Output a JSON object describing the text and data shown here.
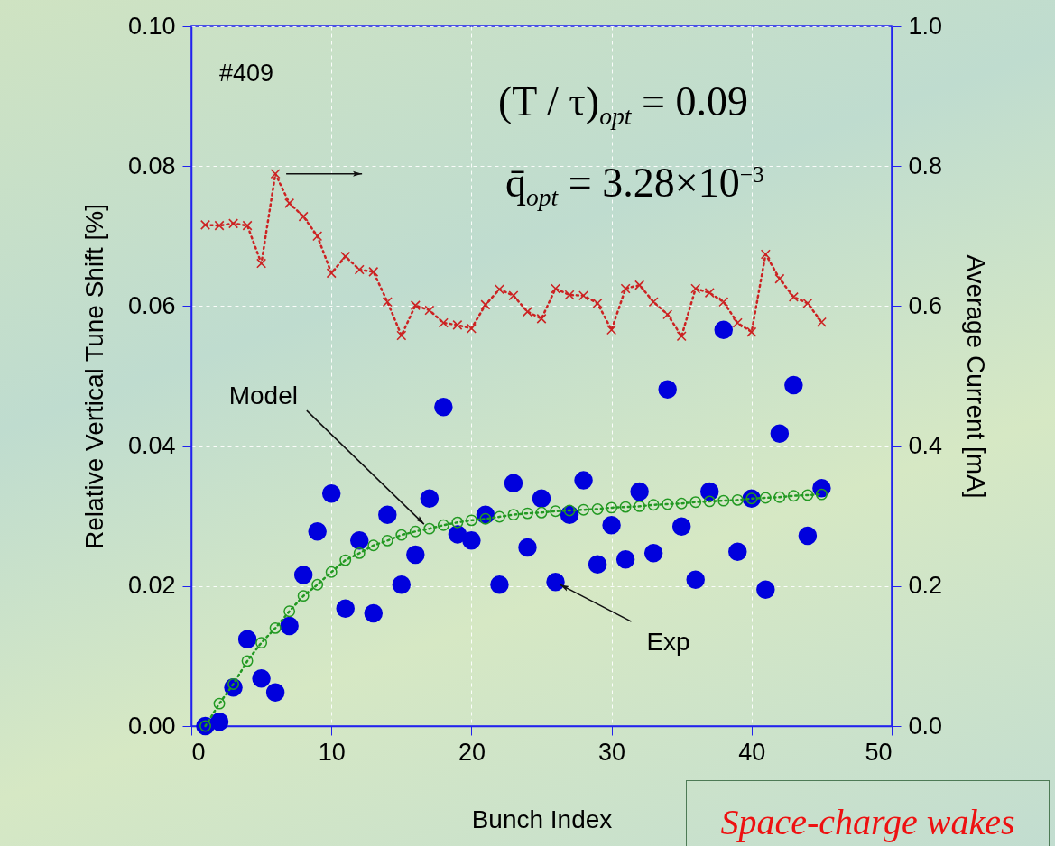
{
  "chart_data": {
    "type": "scatter",
    "xlabel": "Bunch Index",
    "ylabel": "Relative Vertical Tune Shift [%]",
    "y2label": "Average Current [mA]",
    "x": [
      1,
      2,
      3,
      4,
      5,
      6,
      7,
      8,
      9,
      10,
      11,
      12,
      13,
      14,
      15,
      16,
      17,
      18,
      19,
      20,
      21,
      22,
      23,
      24,
      25,
      26,
      27,
      28,
      29,
      30,
      31,
      32,
      33,
      34,
      35,
      36,
      37,
      38,
      39,
      40,
      41,
      42,
      43,
      44,
      45
    ],
    "series": [
      {
        "type": "line",
        "color": "#cc2222",
        "marker": "cross",
        "line_style": "dotted",
        "axis": "y2",
        "values": [
          0.716,
          0.715,
          0.718,
          0.715,
          0.661,
          0.789,
          0.747,
          0.728,
          0.7,
          0.647,
          0.671,
          0.652,
          0.649,
          0.606,
          0.558,
          0.601,
          0.594,
          0.576,
          0.573,
          0.568,
          0.602,
          0.624,
          0.615,
          0.592,
          0.582,
          0.625,
          0.616,
          0.615,
          0.604,
          0.566,
          0.625,
          0.63,
          0.606,
          0.588,
          0.557,
          0.625,
          0.619,
          0.606,
          0.576,
          0.563,
          0.674,
          0.639,
          0.613,
          0.604,
          0.577
        ]
      },
      {
        "type": "line",
        "color": "#229922",
        "marker": "circle",
        "line_style": "dotted",
        "values": [
          0.0,
          0.0032,
          0.006,
          0.0093,
          0.0119,
          0.014,
          0.0164,
          0.0186,
          0.0202,
          0.022,
          0.0237,
          0.0247,
          0.0258,
          0.0265,
          0.0273,
          0.0278,
          0.0282,
          0.0287,
          0.0291,
          0.0294,
          0.0296,
          0.0299,
          0.0302,
          0.0304,
          0.0305,
          0.0307,
          0.0308,
          0.0309,
          0.031,
          0.0312,
          0.0313,
          0.0314,
          0.0316,
          0.0317,
          0.0318,
          0.032,
          0.0321,
          0.0322,
          0.0323,
          0.0325,
          0.0326,
          0.0327,
          0.0329,
          0.033,
          0.0331
        ]
      },
      {
        "color": "#0000dd",
        "marker": "circle",
        "values": [
          0.0,
          0.0006,
          0.0055,
          0.0124,
          0.0068,
          0.0048,
          0.0143,
          0.0216,
          0.0278,
          0.0332,
          0.0168,
          0.0265,
          0.0161,
          0.0302,
          0.0202,
          0.0245,
          0.0325,
          0.0456,
          0.0274,
          0.0265,
          0.0302,
          0.0202,
          0.0347,
          0.0255,
          0.0325,
          0.0206,
          0.0302,
          0.0351,
          0.0231,
          0.0287,
          0.0238,
          0.0335,
          0.0247,
          0.0481,
          0.0285,
          0.0209,
          0.0335,
          0.0566,
          0.0249,
          0.0325,
          0.0195,
          0.0418,
          0.0487,
          0.0272,
          0.034
        ]
      }
    ],
    "xlim": [
      0,
      50
    ],
    "xticks": [
      0,
      10,
      20,
      30,
      40,
      50
    ],
    "ylim": [
      0,
      0.1
    ],
    "yticks": [
      {
        "value": 0,
        "label": "0.00"
      },
      {
        "value": 0.02,
        "label": "0.02"
      },
      {
        "value": 0.04,
        "label": "0.04"
      },
      {
        "value": 0.06,
        "label": "0.06"
      },
      {
        "value": 0.08,
        "label": "0.08"
      },
      {
        "value": 0.1,
        "label": "0.10"
      }
    ],
    "y2lim": [
      0,
      1
    ],
    "y2ticks": [
      {
        "value": 0,
        "label": "0.0"
      },
      {
        "value": 0.2,
        "label": "0.2"
      },
      {
        "value": 0.4,
        "label": "0.4"
      },
      {
        "value": 0.6,
        "label": "0.6"
      },
      {
        "value": 0.8,
        "label": "0.8"
      },
      {
        "value": 1,
        "label": "1.0"
      }
    ],
    "grid": true,
    "annotations": [
      {
        "text": "Model",
        "x": 17,
        "y": 0.0282
      },
      {
        "text": "Exp",
        "x": 26,
        "y": 0.0206
      },
      "#409",
      "(T / τ)$_{opt}$ = 0.09",
      "q̄$_{opt}$ = 3.28×10$^{−3}$",
      "Space-charge wakes"
    ]
  }
}
